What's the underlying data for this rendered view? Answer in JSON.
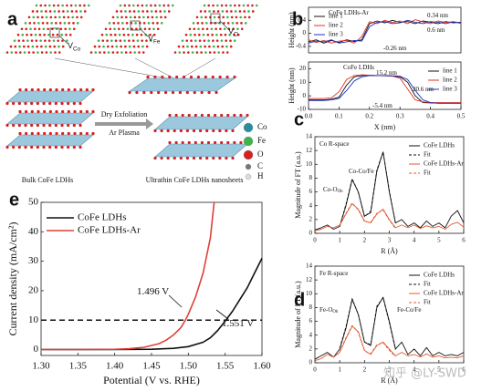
{
  "schematic": {
    "panel": "a",
    "vacancies": [
      {
        "text": "V",
        "sub": "Co"
      },
      {
        "text": "V",
        "sub": "Fe"
      },
      {
        "text": "V",
        "sub": "O"
      }
    ],
    "bulk_label": "Bulk CoFe LDHs",
    "process": [
      "Dry Exfoliation",
      "Ar Plasma"
    ],
    "product_label": "Ultrathin CoFe LDHs nanosheets",
    "legend": [
      {
        "name": "Co",
        "color": "#2a8c9c"
      },
      {
        "name": "Fe",
        "color": "#3db54a"
      },
      {
        "name": "O",
        "color": "#d42020"
      },
      {
        "name": "C",
        "color": "#777777"
      },
      {
        "name": "H",
        "color": "#dddddd"
      }
    ]
  },
  "chart_data": [
    {
      "type": "line",
      "panel": "b",
      "ylabel": "Height (nm)",
      "x": [
        0,
        0.025,
        0.05,
        0.075,
        0.1,
        0.125,
        0.15,
        0.175,
        0.2,
        0.225,
        0.25,
        0.275,
        0.3,
        0.325,
        0.35,
        0.375,
        0.4,
        0.425,
        0.45,
        0.475,
        0.5
      ],
      "xlim": [
        0,
        0.5
      ],
      "ylim": [
        -0.6,
        0.8
      ],
      "yticks": [
        -0.4,
        0,
        0.4
      ],
      "legend": "upper left",
      "series": [
        {
          "name": "line 1",
          "color": "#111111",
          "values": [
            -0.26,
            -0.2,
            -0.3,
            -0.22,
            -0.28,
            -0.2,
            -0.25,
            -0.2,
            0.3,
            0.38,
            0.32,
            0.4,
            0.34,
            0.36,
            0.3,
            0.38,
            0.34,
            0.3,
            0.36,
            0.32,
            0.34
          ]
        },
        {
          "name": "line 2",
          "color": "#e03020",
          "values": [
            -0.2,
            -0.28,
            -0.22,
            -0.3,
            -0.24,
            -0.22,
            -0.3,
            -0.1,
            0.36,
            0.3,
            0.4,
            0.33,
            0.38,
            0.3,
            0.42,
            0.35,
            0.3,
            0.38,
            0.33,
            0.36,
            0.3
          ]
        },
        {
          "name": "line 3",
          "color": "#2030c0",
          "values": [
            -0.3,
            -0.24,
            -0.26,
            -0.2,
            -0.3,
            -0.26,
            -0.22,
            -0.24,
            0.2,
            0.34,
            0.36,
            0.3,
            0.32,
            0.4,
            0.34,
            0.3,
            0.36,
            0.34,
            0.3,
            0.35,
            0.33
          ]
        }
      ],
      "annotations": [
        {
          "text": "CoFe LDHs-Ar"
        },
        {
          "text": "0.34 nm"
        },
        {
          "text": "0.6 nm"
        },
        {
          "text": "-0.26 nm"
        }
      ]
    },
    {
      "type": "line",
      "ylabel": "Height (nm)",
      "xlabel": "X (nm)",
      "x": [
        0,
        0.025,
        0.05,
        0.075,
        0.1,
        0.125,
        0.15,
        0.175,
        0.2,
        0.225,
        0.25,
        0.275,
        0.3,
        0.325,
        0.35,
        0.375,
        0.4,
        0.425,
        0.45,
        0.475,
        0.5
      ],
      "xlim": [
        0,
        0.5
      ],
      "xticks": [
        {
          "value": 0,
          "label": "0.0"
        },
        0.1,
        0.2,
        0.3,
        0.4,
        0.5
      ],
      "ylim": [
        -10,
        25
      ],
      "yticks": [
        -10,
        0,
        10,
        20
      ],
      "legend": "upper right",
      "series": [
        {
          "name": "line 1",
          "color": "#111111",
          "values": [
            -3,
            -3,
            -3,
            -2.5,
            -1,
            8,
            14,
            15,
            15.2,
            15,
            14.8,
            14.5,
            14,
            10,
            0,
            -5,
            -5.2,
            -5.4,
            -5.3,
            -5.4,
            -5.4
          ]
        },
        {
          "name": "line 2",
          "color": "#e03020",
          "values": [
            -2,
            -2,
            -2,
            -1.5,
            3,
            12,
            15,
            15.5,
            15.2,
            15,
            15,
            14.5,
            13,
            5,
            -3,
            -4.5,
            -5,
            -5,
            -5,
            -5,
            -5
          ]
        },
        {
          "name": "line 3",
          "color": "#2030c0",
          "values": [
            -3.5,
            -3.5,
            -3.5,
            -3,
            -2,
            4,
            11,
            14,
            15,
            15,
            15,
            14.8,
            14.5,
            12,
            4,
            -3,
            -5,
            -5.5,
            -5.5,
            -5.5,
            -5.5
          ]
        }
      ],
      "annotations": [
        {
          "text": "CoFe LDHs"
        },
        {
          "text": "15.2 nm"
        },
        {
          "text": "20.6 nm"
        },
        {
          "text": "-5.4 nm"
        }
      ]
    },
    {
      "type": "line",
      "panel": "c",
      "ylabel": "Magnitude of FT (a.u.)",
      "xlabel": "R (Å)",
      "x": [
        0,
        0.25,
        0.5,
        0.75,
        1,
        1.25,
        1.5,
        1.75,
        2,
        2.25,
        2.5,
        2.75,
        3,
        3.25,
        3.5,
        3.75,
        4,
        4.25,
        4.5,
        4.75,
        5,
        5.25,
        5.5,
        5.75,
        6
      ],
      "xlim": [
        0,
        6
      ],
      "xticks": [
        0,
        1,
        2,
        3,
        4,
        5,
        6
      ],
      "ylim": [
        0,
        14
      ],
      "yticks": [
        0,
        2,
        4,
        6,
        8,
        10,
        12,
        14
      ],
      "legend": "upper right",
      "series": [
        {
          "name": "CoFe LDHs",
          "color": "#111111",
          "style": "solid",
          "values": [
            0.5,
            0.8,
            1.2,
            0.6,
            1,
            4,
            7.8,
            6,
            2.5,
            3,
            9,
            11.8,
            6,
            1.5,
            2,
            1,
            1.5,
            0.8,
            1.8,
            1,
            1.5,
            0.8,
            2.5,
            3.3,
            1.5
          ]
        },
        {
          "name": "Fit",
          "color": "#111111",
          "style": "dashed",
          "values": [
            null,
            null,
            null,
            null,
            1,
            4.2,
            7.9,
            6,
            2.4,
            3.2,
            9.2,
            11.8,
            6.2,
            1.4,
            null,
            null,
            null,
            null,
            null,
            null,
            null,
            null,
            null,
            null,
            null
          ]
        },
        {
          "name": "CoFe LDHs-Ar",
          "color": "#e05a30",
          "style": "solid",
          "values": [
            0.4,
            0.6,
            1,
            0.8,
            1.2,
            2.8,
            4.3,
            3.5,
            1.8,
            1.5,
            2.8,
            3.5,
            2,
            0.8,
            1.2,
            0.8,
            1.2,
            0.7,
            1.1,
            0.8,
            1,
            0.6,
            1.3,
            1.6,
            0.9
          ]
        },
        {
          "name": "Fit",
          "color": "#e05a30",
          "style": "dashed",
          "values": [
            null,
            null,
            null,
            null,
            1.1,
            2.9,
            4.4,
            3.4,
            1.7,
            1.6,
            2.9,
            3.4,
            1.9,
            0.7,
            null,
            null,
            null,
            null,
            null,
            null,
            null,
            null,
            null,
            null,
            null
          ]
        }
      ],
      "annotations": [
        {
          "text": "Co  R-space"
        },
        {
          "text": "Co-Co/Fe"
        },
        {
          "text": "Co-O",
          "sub": "Oh"
        }
      ]
    },
    {
      "type": "line",
      "panel": "d",
      "ylabel": "Magnitude of FT (a.u.)",
      "xlabel": "R (Å)",
      "x": [
        0,
        0.25,
        0.5,
        0.75,
        1,
        1.25,
        1.5,
        1.75,
        2,
        2.25,
        2.5,
        2.75,
        3,
        3.25,
        3.5,
        3.75,
        4,
        4.25,
        4.5,
        4.75,
        5,
        5.25,
        5.5,
        5.75,
        6
      ],
      "xlim": [
        0,
        6
      ],
      "xticks": [
        0,
        1,
        2,
        3,
        4,
        5,
        6
      ],
      "ylim": [
        0,
        14
      ],
      "yticks": [
        0,
        2,
        4,
        6,
        8,
        10,
        12,
        14
      ],
      "legend": "upper right",
      "series": [
        {
          "name": "CoFe LDHs",
          "color": "#111111",
          "style": "solid",
          "values": [
            0.5,
            1,
            1.5,
            0.8,
            2,
            5,
            9.2,
            7,
            3,
            2.5,
            8,
            9.5,
            6,
            2,
            3,
            1.2,
            2,
            1,
            2.2,
            1,
            1.5,
            1,
            1.2,
            1,
            1.5
          ]
        },
        {
          "name": "Fit",
          "color": "#111111",
          "style": "dashed",
          "values": [
            null,
            null,
            null,
            null,
            2.1,
            5.2,
            9.3,
            7,
            3,
            2.6,
            8.2,
            9.4,
            5.8,
            1.9,
            null,
            null,
            null,
            null,
            null,
            null,
            null,
            null,
            null,
            null,
            null
          ]
        },
        {
          "name": "CoFe LDHs-Ar",
          "color": "#e05a30",
          "style": "solid",
          "values": [
            0.3,
            0.6,
            1.2,
            0.8,
            1.5,
            3.5,
            5.3,
            4.5,
            1.8,
            1.2,
            2.5,
            3,
            2,
            1,
            1.5,
            1,
            1.2,
            0.8,
            1.3,
            0.8,
            1,
            0.7,
            0.8,
            0.7,
            1
          ]
        },
        {
          "name": "Fit",
          "color": "#e05a30",
          "style": "dashed",
          "values": [
            null,
            null,
            null,
            null,
            1.6,
            3.6,
            5.4,
            4.4,
            1.7,
            1.3,
            2.6,
            2.9,
            1.8,
            0.9,
            null,
            null,
            null,
            null,
            null,
            null,
            null,
            null,
            null,
            null,
            null
          ]
        }
      ],
      "annotations": [
        {
          "text": "Fe  R-space"
        },
        {
          "text": "Fe-O",
          "sub": "Oh"
        },
        {
          "text": "Fe-Co/Fe"
        }
      ]
    },
    {
      "type": "line",
      "panel": "e",
      "ylabel": "Current density (mA/cm²)",
      "xlabel": "Potential (V vs. RHE)",
      "xlim": [
        1.3,
        1.6
      ],
      "xticks": [
        {
          "value": 1.3,
          "label": "1.30"
        },
        1.35,
        {
          "value": 1.4,
          "label": "1.40"
        },
        1.45,
        {
          "value": 1.5,
          "label": "1.50"
        },
        1.55,
        {
          "value": 1.6,
          "label": "1.60"
        }
      ],
      "ylim": [
        -2,
        50
      ],
      "yticks": [
        0,
        10,
        20,
        30,
        40,
        50
      ],
      "hline": 10,
      "legend": "upper left",
      "series": [
        {
          "name": "CoFe LDHs",
          "color": "#111111",
          "x": [
            1.3,
            1.4,
            1.45,
            1.48,
            1.5,
            1.52,
            1.53,
            1.54,
            1.551,
            1.56,
            1.57,
            1.58,
            1.59,
            1.6
          ],
          "values": [
            0,
            0,
            0.1,
            0.4,
            1,
            2.5,
            4,
            6.5,
            10,
            13,
            17,
            21,
            26,
            31
          ]
        },
        {
          "name": "CoFe LDHs-Ar",
          "color": "#e0403a",
          "x": [
            1.3,
            1.35,
            1.4,
            1.42,
            1.44,
            1.46,
            1.47,
            1.48,
            1.49,
            1.496,
            1.5,
            1.51,
            1.52,
            1.53,
            1.535
          ],
          "values": [
            0,
            0,
            0.1,
            0.3,
            0.8,
            2,
            3.2,
            5,
            7.5,
            10,
            12,
            18,
            26,
            38,
            50
          ]
        }
      ],
      "annotations": [
        {
          "text": "1.496 V"
        },
        {
          "text": "1.551 V"
        }
      ]
    }
  ],
  "watermark": "知乎 @LY-SWD"
}
